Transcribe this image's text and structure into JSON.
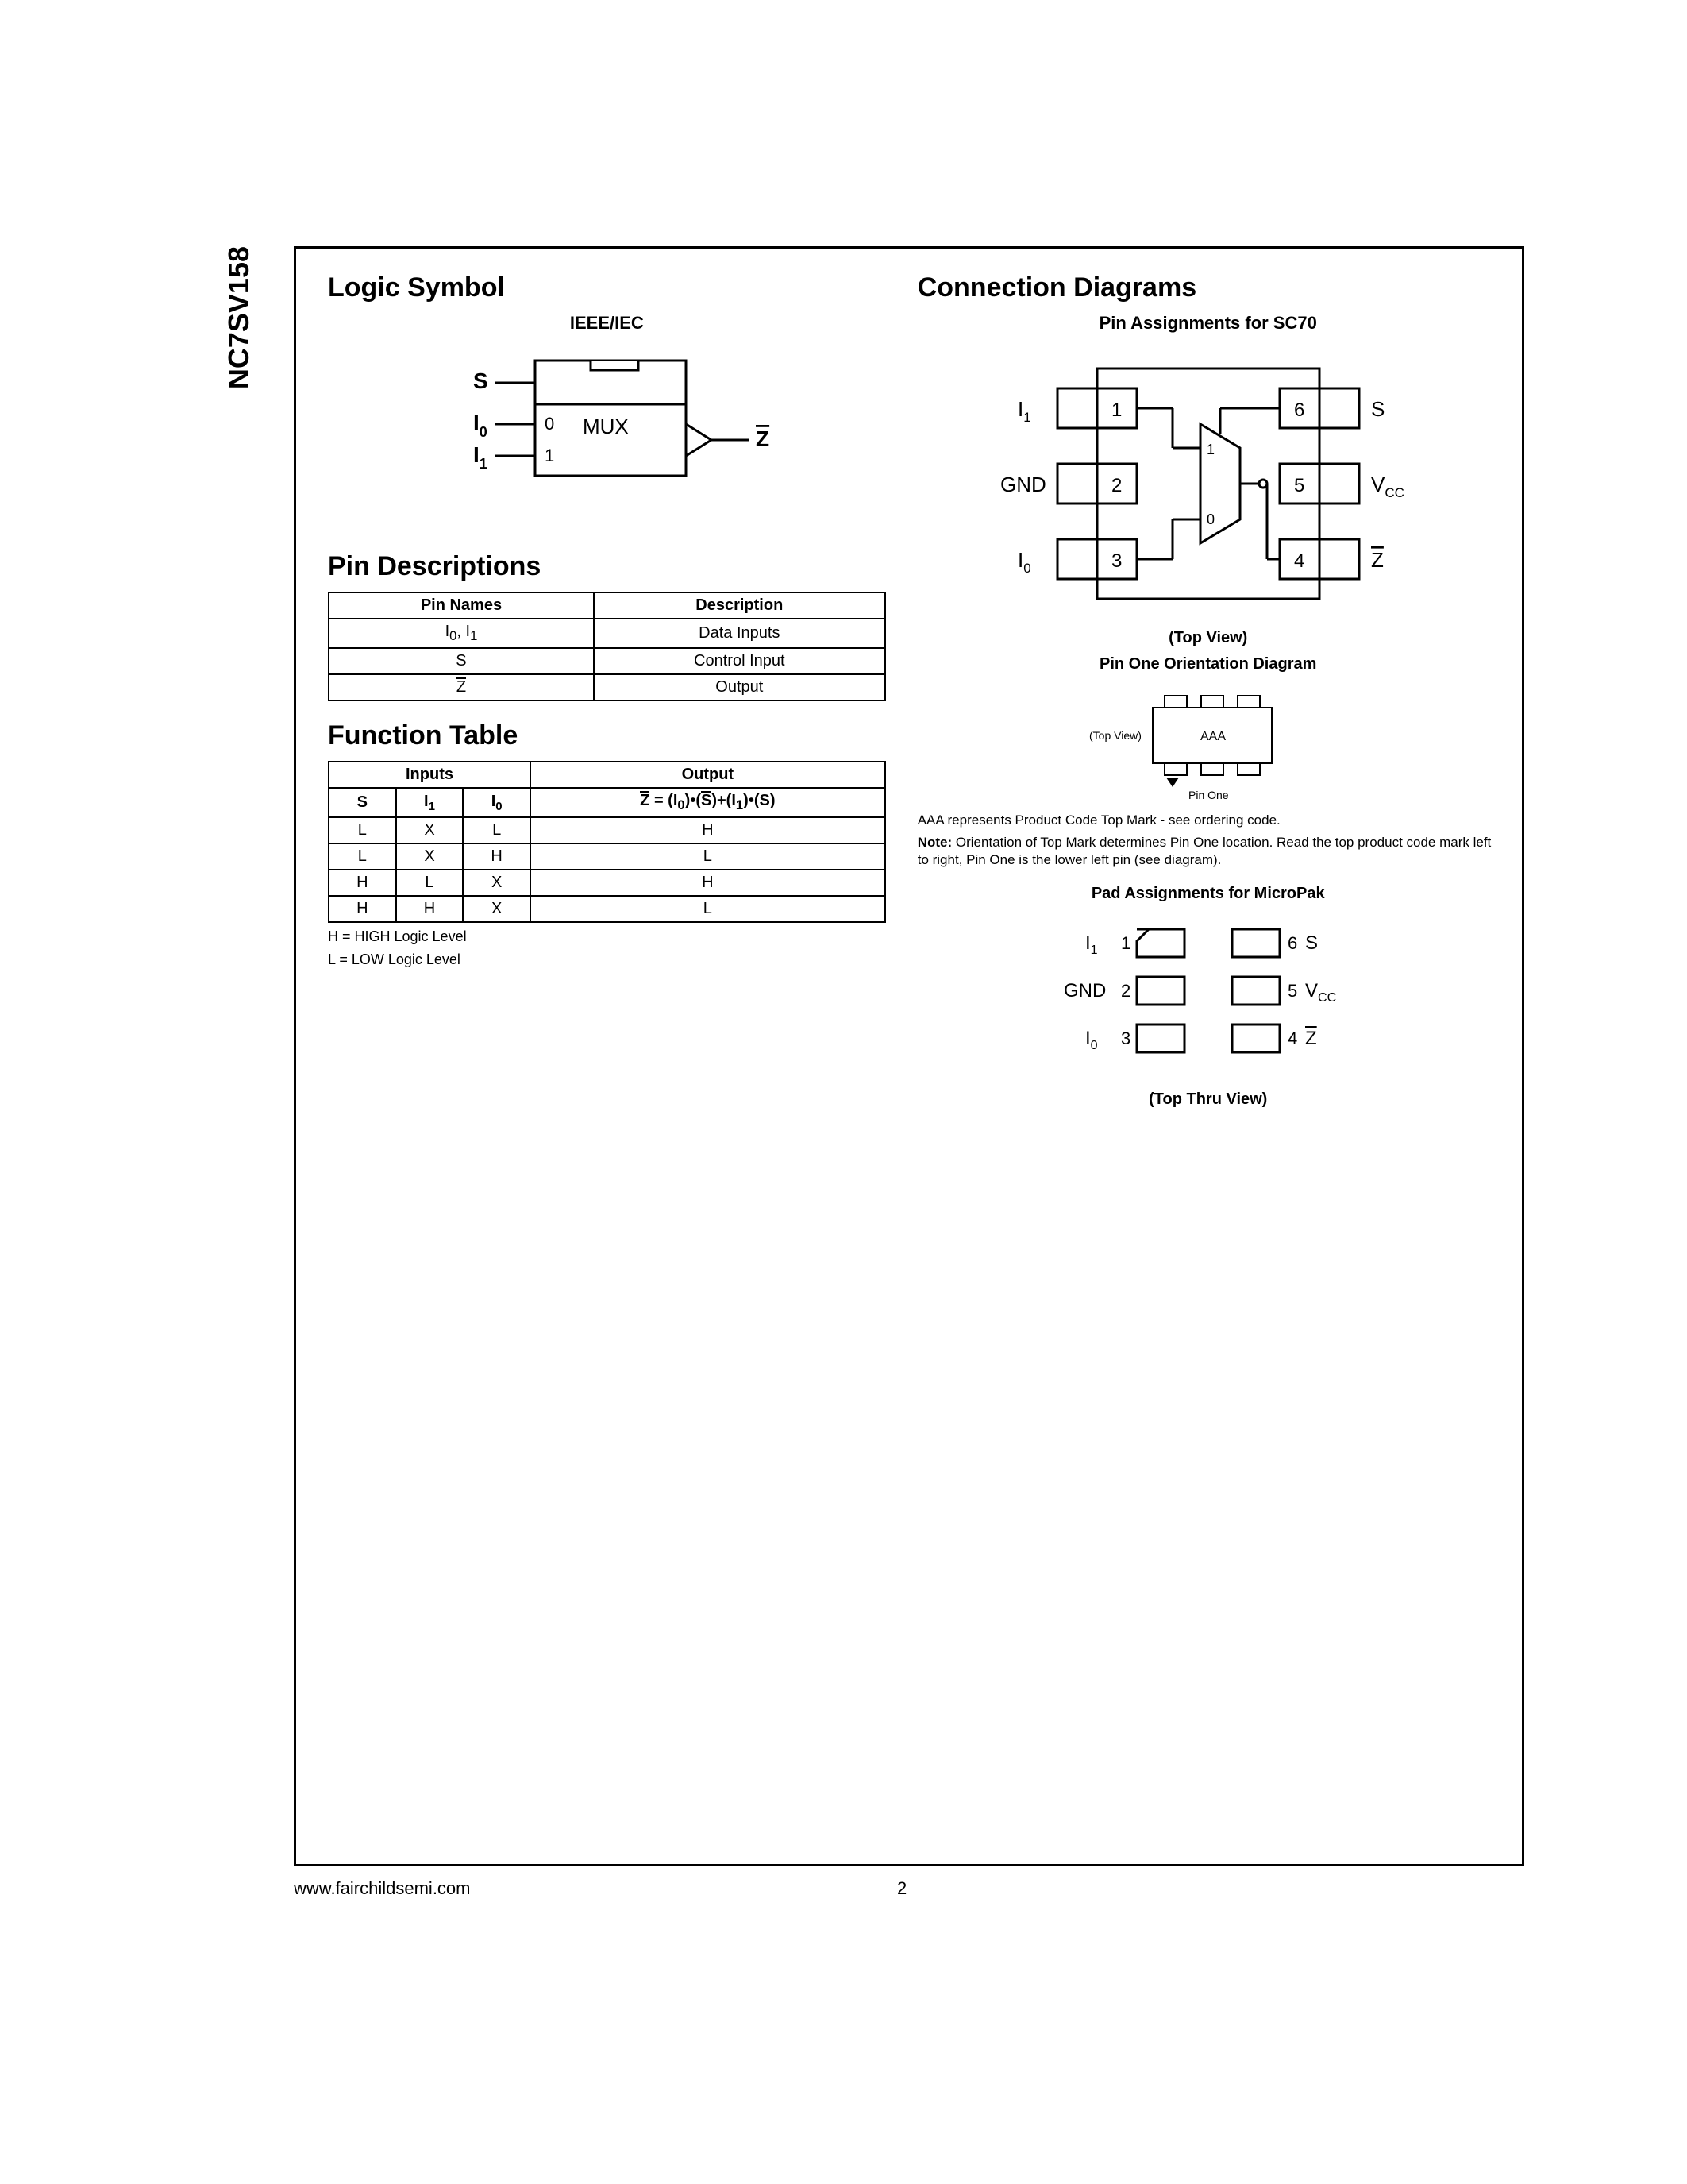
{
  "part_number": "NC7SV158",
  "footer": {
    "url": "www.fairchildsemi.com",
    "page": "2"
  },
  "left": {
    "logic_symbol_title": "Logic Symbol",
    "logic_symbol_subtitle": "IEEE/IEC",
    "logic": {
      "body_label": "MUX",
      "pin_s": "S",
      "pin_i0": "I",
      "pin_i0_sub": "0",
      "pin_i1": "I",
      "pin_i1_sub": "1",
      "pin_z": "Z",
      "in0": "0",
      "in1": "1",
      "stroke": "#000000",
      "bg": "#ffffff"
    },
    "pin_desc_title": "Pin Descriptions",
    "pin_desc": {
      "head_names": "Pin Names",
      "head_desc": "Description",
      "rows": [
        {
          "name_html": "I<sub>0</sub>, I<sub>1</sub>",
          "desc": "Data Inputs"
        },
        {
          "name_html": "S",
          "desc": "Control Input"
        },
        {
          "name_html": "<span class=\"Zbar\">Z</span>",
          "desc": "Output"
        }
      ]
    },
    "func_title": "Function Table",
    "func": {
      "head_inputs": "Inputs",
      "head_output": "Output",
      "col_s": "S",
      "col_i1": "I",
      "col_i1_sub": "1",
      "col_i0": "I",
      "col_i0_sub": "0",
      "output_formula_html": "<span class=\"Zbar\">Z</span> = (I<sub>0</sub>)•(<span class=\"Zbar\">S</span>)+(I<sub>1</sub>)•(S)",
      "rows": [
        [
          "L",
          "X",
          "L",
          "H"
        ],
        [
          "L",
          "X",
          "H",
          "L"
        ],
        [
          "H",
          "L",
          "X",
          "H"
        ],
        [
          "H",
          "H",
          "X",
          "L"
        ]
      ],
      "legend_h": "H = HIGH Logic Level",
      "legend_l": "L = LOW Logic Level"
    }
  },
  "right": {
    "conn_title": "Connection Diagrams",
    "sc70_title": "Pin Assignments for SC70",
    "sc70": {
      "pin1_label": "I",
      "pin1_sub": "1",
      "pin1_num": "1",
      "pin2_label": "GND",
      "pin2_num": "2",
      "pin3_label": "I",
      "pin3_sub": "0",
      "pin3_num": "3",
      "pin4_label_html": "<span class=\"Zbar\">Z</span>",
      "pin4_num": "4",
      "pin5_label": "V",
      "pin5_sub": "CC",
      "pin5_num": "5",
      "pin6_label": "S",
      "pin6_num": "6",
      "mux0": "0",
      "mux1": "1",
      "caption": "(Top View)"
    },
    "orient_title": "Pin One Orientation Diagram",
    "orient": {
      "topview": "(Top View)",
      "aaa": "AAA",
      "pinone": "Pin One"
    },
    "aaa_note": "AAA represents Product Code Top Mark - see ordering code.",
    "note_bold": "Note:",
    "note_text": " Orientation of Top Mark determines Pin One location. Read the top product code mark left to right, Pin One is the lower left pin (see diagram).",
    "micropak_title": "Pad Assignments for MicroPak",
    "micropak": {
      "p1": "I",
      "p1_sub": "1",
      "p1_num": "1",
      "p2": "GND",
      "p2_num": "2",
      "p3": "I",
      "p3_sub": "0",
      "p3_num": "3",
      "p4_html": "<span class=\"Zbar\">Z</span>",
      "p4_num": "4",
      "p5": "V",
      "p5_sub": "CC",
      "p5_num": "5",
      "p6": "S",
      "p6_num": "6",
      "caption": "(Top Thru View)"
    }
  }
}
